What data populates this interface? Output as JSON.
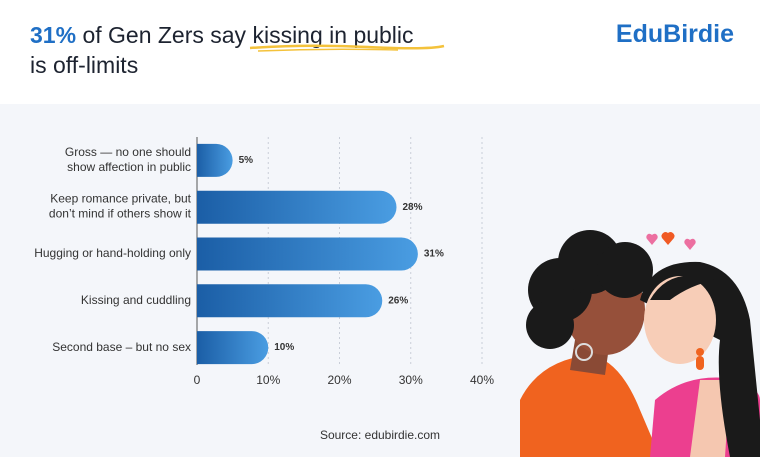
{
  "chart_data": {
    "type": "hbar",
    "title": [
      "31%",
      "of Gen Zers say",
      "kissing in public",
      "is off-limits"
    ],
    "brand": "EduBirdie",
    "source": "Source: edubirdie.com",
    "categories": [
      "Gross — no one should\nshow affection in public",
      "Keep romance private, but\ndon’t mind if others show it",
      "Hugging or hand-holding only",
      "Kissing and cuddling",
      "Second base – but no sex"
    ],
    "values": [
      5,
      28,
      31,
      26,
      10
    ],
    "value_labels": [
      "5%",
      "28%",
      "31%",
      "26%",
      "10%"
    ],
    "color": [
      "#1b5ea6",
      "#4a9de2"
    ],
    "xlim": [
      0,
      40
    ],
    "xticks": [
      0,
      {
        "value": 10,
        "label": "10%"
      },
      {
        "value": 20,
        "label": "20%"
      },
      {
        "value": 30,
        "label": "30%"
      },
      {
        "value": 40,
        "label": "40%"
      }
    ],
    "grid": true
  }
}
